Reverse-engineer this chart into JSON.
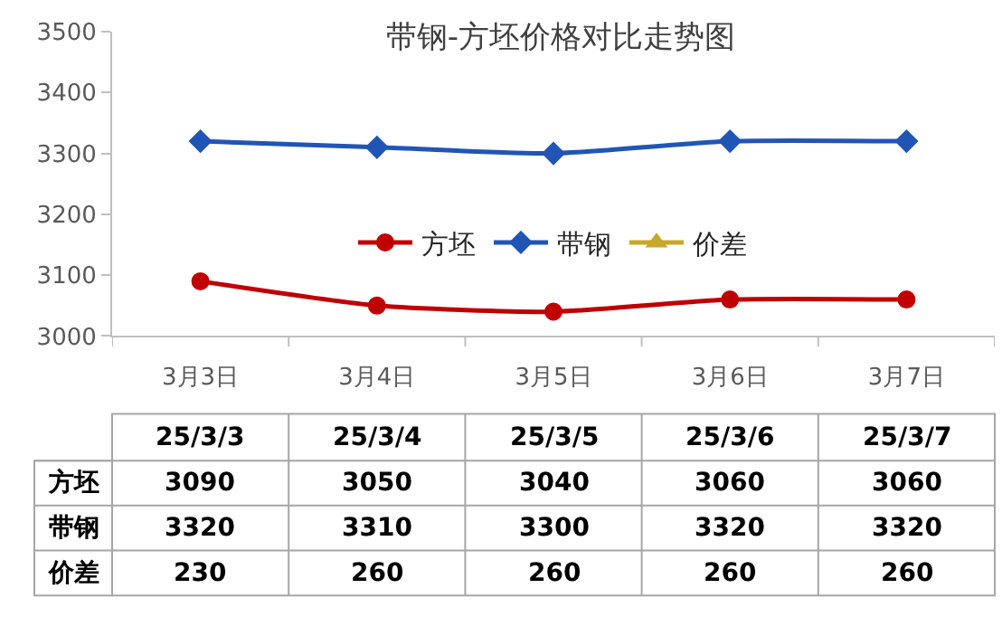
{
  "chart_data": {
    "type": "line",
    "title": "带钢-方坯价格对比走势图",
    "categories": [
      "3月3日",
      "3月4日",
      "3月5日",
      "3月6日",
      "3月7日"
    ],
    "series": [
      {
        "name": "方坯",
        "color": "#c00000",
        "values": [
          3090,
          3050,
          3040,
          3060,
          3060
        ],
        "marker": "circle"
      },
      {
        "name": "带钢",
        "color": "#2155b5",
        "values": [
          3320,
          3310,
          3300,
          3320,
          3320
        ],
        "marker": "diamond"
      },
      {
        "name": "价差",
        "color": "#c8a82a",
        "values": [
          null,
          null,
          null,
          null,
          null
        ],
        "value_labels": [
          "230",
          "260",
          "260",
          "260",
          "260"
        ],
        "marker": "triangle"
      }
    ],
    "ylim": [
      3000,
      3500
    ],
    "yticks": [
      3000,
      3100,
      3200,
      3300,
      3400,
      3500
    ],
    "grid": false,
    "legend": "center",
    "data_labels": true,
    "annotations": [
      "25/3/3",
      "25/3/4",
      "25/3/5",
      "25/3/6",
      "25/3/7"
    ]
  }
}
